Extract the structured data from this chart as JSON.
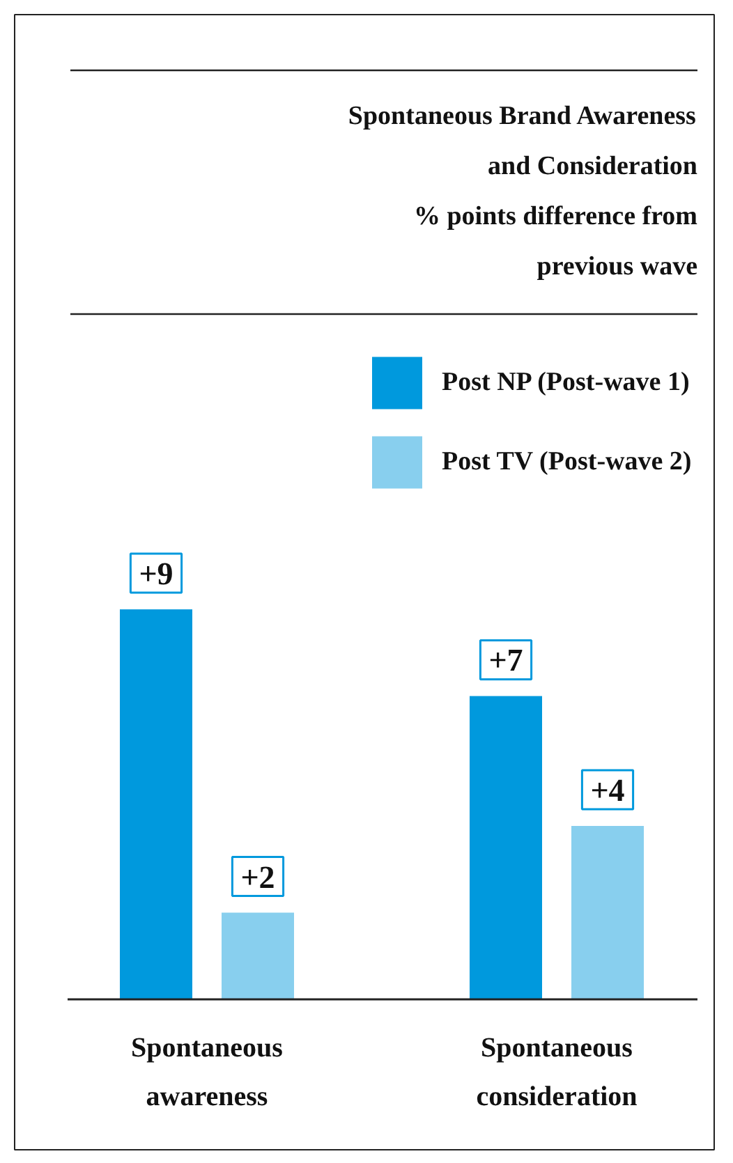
{
  "chart_data": {
    "type": "bar",
    "title": "Spontaneous Brand Awareness\nand Consideration",
    "subtitle": "% points difference from\nprevious wave",
    "categories": [
      "Spontaneous\nawareness",
      "Spontaneous\nconsideration"
    ],
    "series": [
      {
        "name": "Post NP (Post-wave 1)",
        "color": "#0099dd",
        "values": [
          9,
          7
        ],
        "value_labels": [
          "+9",
          "+7"
        ]
      },
      {
        "name": "Post TV (Post-wave 2)",
        "color": "#88cfee",
        "values": [
          2,
          4
        ],
        "value_labels": [
          "+2",
          "+4"
        ]
      }
    ],
    "legend": "top right",
    "grid": false
  }
}
